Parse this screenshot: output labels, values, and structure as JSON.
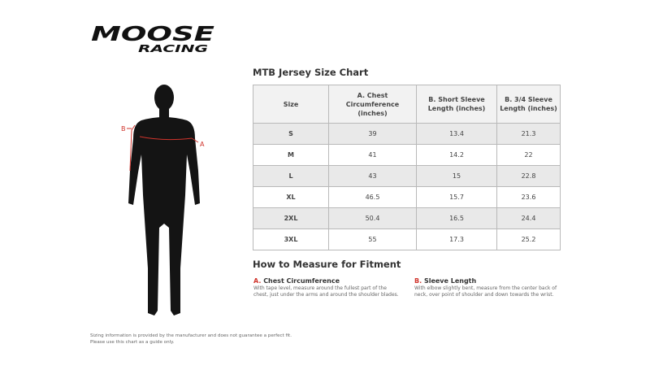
{
  "logo": {
    "text": "MOOSE RACING"
  },
  "chart": {
    "title": "MTB Jersey Size Chart",
    "headers": [
      "Size",
      "A. Chest Circumference (inches)",
      "B. Short Sleeve Length (inches)",
      "B. 3/4 Sleeve Length (inches)"
    ],
    "rows": [
      [
        "S",
        "39",
        "13.4",
        "21.3"
      ],
      [
        "M",
        "41",
        "14.2",
        "22"
      ],
      [
        "L",
        "43",
        "15",
        "22.8"
      ],
      [
        "XL",
        "46.5",
        "15.7",
        "23.6"
      ],
      [
        "2XL",
        "50.4",
        "16.5",
        "24.4"
      ],
      [
        "3XL",
        "55",
        "17.3",
        "25.2"
      ]
    ]
  },
  "figure": {
    "label_a": "A",
    "label_b": "B",
    "accent": "#d0342c"
  },
  "howto": {
    "title": "How to Measure for Fitment",
    "items": [
      {
        "letter": "A.",
        "heading": "Chest Circumference",
        "text": "With tape level, measure around the fullest part of the chest, just under the arms and around the shoulder blades."
      },
      {
        "letter": "B.",
        "heading": "Sleeve Length",
        "text": "With elbow slightly bent, measure from the center back of neck, over point of shoulder and down towards the wrist."
      }
    ]
  },
  "disclaimer": {
    "line1": "Sizing information is provided by the manufacturer and does not guarantee a perfect fit.",
    "line2": "Please use this chart as a guide only."
  }
}
